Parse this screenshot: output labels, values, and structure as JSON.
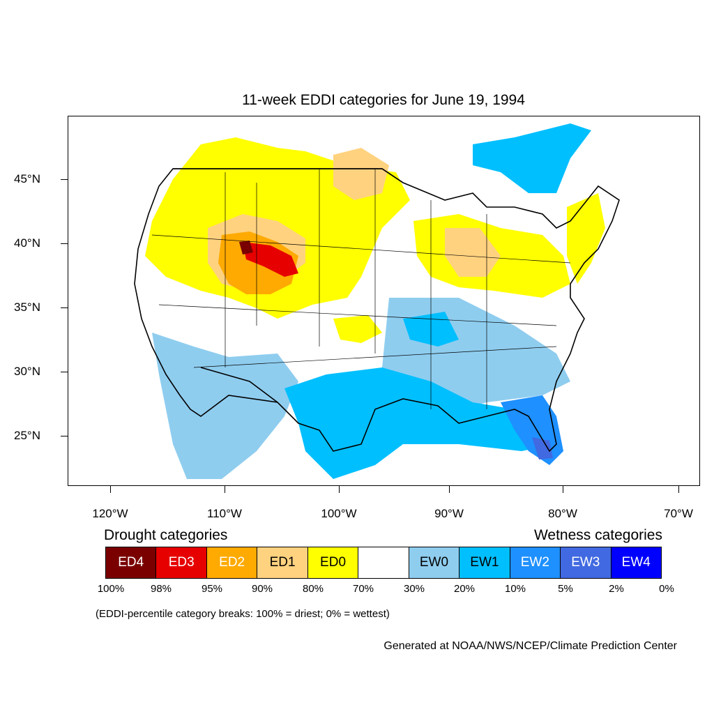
{
  "title": "11-week EDDI categories for June 19, 1994",
  "lat_labels": [
    "45°N",
    "40°N",
    "35°N",
    "30°N",
    "25°N"
  ],
  "lon_labels": [
    "120°W",
    "110°W",
    "100°W",
    "90°W",
    "80°W",
    "70°W"
  ],
  "drought_label": "Drought categories",
  "wetness_label": "Wetness categories",
  "categories": [
    {
      "label": "ED4",
      "color": "#7a0000",
      "text_color": "#ffffff"
    },
    {
      "label": "ED3",
      "color": "#e60000",
      "text_color": "#ffffff"
    },
    {
      "label": "ED2",
      "color": "#ffaa00",
      "text_color": "#ffffff"
    },
    {
      "label": "ED1",
      "color": "#ffd27f",
      "text_color": "#000000"
    },
    {
      "label": "ED0",
      "color": "#ffff00",
      "text_color": "#000000"
    },
    {
      "label": "",
      "color": "#ffffff",
      "text_color": "#000000"
    },
    {
      "label": "EW0",
      "color": "#8fcdef",
      "text_color": "#000000"
    },
    {
      "label": "EW1",
      "color": "#00bfff",
      "text_color": "#000000"
    },
    {
      "label": "EW2",
      "color": "#1e90ff",
      "text_color": "#ffffff"
    },
    {
      "label": "EW3",
      "color": "#4169e1",
      "text_color": "#ffffff"
    },
    {
      "label": "EW4",
      "color": "#0000ff",
      "text_color": "#ffffff"
    }
  ],
  "breaks": [
    "100%",
    "98%",
    "95%",
    "90%",
    "80%",
    "70%",
    "30%",
    "20%",
    "10%",
    "5%",
    "2%",
    "0%"
  ],
  "note": "(EDDI-percentile category breaks: 100% = driest; 0% = wettest)",
  "credit": "Generated at NOAA/NWS/NCEP/Climate Prediction Center"
}
